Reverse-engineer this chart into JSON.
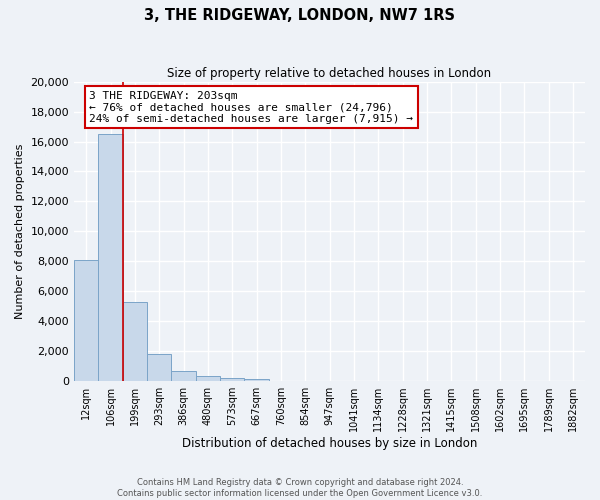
{
  "title": "3, THE RIDGEWAY, LONDON, NW7 1RS",
  "subtitle": "Size of property relative to detached houses in London",
  "xlabel": "Distribution of detached houses by size in London",
  "ylabel": "Number of detached properties",
  "bar_labels": [
    "12sqm",
    "106sqm",
    "199sqm",
    "293sqm",
    "386sqm",
    "480sqm",
    "573sqm",
    "667sqm",
    "760sqm",
    "854sqm",
    "947sqm",
    "1041sqm",
    "1134sqm",
    "1228sqm",
    "1321sqm",
    "1415sqm",
    "1508sqm",
    "1602sqm",
    "1695sqm",
    "1789sqm",
    "1882sqm"
  ],
  "bar_values": [
    8100,
    16500,
    5300,
    1800,
    650,
    350,
    200,
    150,
    0,
    0,
    0,
    0,
    0,
    0,
    0,
    0,
    0,
    0,
    0,
    0,
    0
  ],
  "bar_color": "#c8d8ea",
  "bar_edge_color": "#7ba4c8",
  "property_line_bar_index": 2,
  "property_label": "3 THE RIDGEWAY: 203sqm",
  "annotation_line1": "← 76% of detached houses are smaller (24,796)",
  "annotation_line2": "24% of semi-detached houses are larger (7,915) →",
  "annotation_box_color": "#ffffff",
  "annotation_box_edge": "#cc0000",
  "line_color": "#cc0000",
  "ylim": [
    0,
    20000
  ],
  "yticks": [
    0,
    2000,
    4000,
    6000,
    8000,
    10000,
    12000,
    14000,
    16000,
    18000,
    20000
  ],
  "footer_line1": "Contains HM Land Registry data © Crown copyright and database right 2024.",
  "footer_line2": "Contains public sector information licensed under the Open Government Licence v3.0.",
  "background_color": "#eef2f7",
  "grid_color": "#ffffff"
}
